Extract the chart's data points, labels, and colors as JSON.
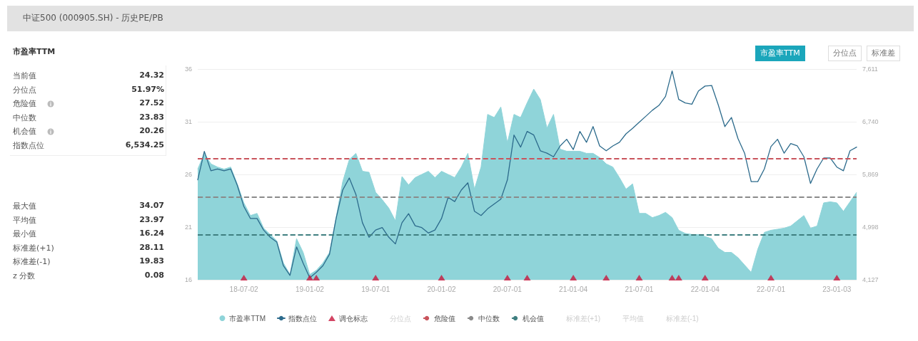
{
  "chart_data": [
    {
      "type": "other",
      "title": "市盈率TTM",
      "annotations": [
        "当前值",
        "24.32",
        "分位点",
        "51.97%",
        "危险值",
        "27.52",
        "中位数",
        "23.83",
        "机会值",
        "20.26",
        "指数点位",
        "6,534.25",
        "最大值",
        "34.07",
        "平均值",
        "23.97",
        "最小值",
        "16.24",
        "标准差(+1)",
        "28.11",
        "标准差(-1)",
        "19.83",
        "z 分数",
        "0.08"
      ]
    },
    {
      "type": "line",
      "title": "中证500 (000905.SH) - 历史PE/PB",
      "categories": [
        null,
        null,
        null,
        null,
        null,
        null,
        null,
        "18-07-02",
        null,
        null,
        null,
        null,
        null,
        null,
        null,
        null,
        null,
        "19-01-02",
        null,
        null,
        null,
        null,
        null,
        null,
        null,
        null,
        null,
        "19-07-01",
        null,
        null,
        null,
        null,
        null,
        null,
        null,
        null,
        null,
        "20-01-02",
        null,
        null,
        null,
        null,
        null,
        null,
        null,
        null,
        null,
        "20-07-01",
        null,
        null,
        null,
        null,
        null,
        null,
        null,
        null,
        null,
        "21-01-04",
        null,
        null,
        null,
        null,
        null,
        null,
        null,
        null,
        null,
        "21-07-01",
        null,
        null,
        null,
        null,
        null,
        null,
        null,
        null,
        null,
        "22-01-04",
        null,
        null,
        null,
        null,
        null,
        null,
        null,
        null,
        null,
        "22-07-01",
        null,
        null,
        null,
        null,
        null,
        null,
        null,
        null,
        null,
        "23-01-03",
        null,
        null,
        null
      ],
      "series": [
        {
          "name": "市盈率TTM",
          "type": "area",
          "color": "#8fd4d9",
          "values": [
            26.5,
            28.0,
            27.0,
            26.7,
            26.5,
            26.7,
            25.1,
            23.3,
            22.1,
            22.3,
            20.9,
            20.3,
            19.7,
            17.6,
            16.5,
            19.9,
            18.6,
            16.5,
            16.9,
            17.6,
            18.6,
            21.9,
            25.3,
            27.4,
            28.0,
            26.3,
            26.2,
            24.3,
            23.6,
            22.8,
            21.6,
            25.8,
            25.0,
            25.7,
            26.0,
            26.3,
            25.7,
            26.3,
            26.0,
            25.7,
            26.7,
            28.0,
            24.6,
            26.7,
            31.7,
            31.4,
            32.4,
            29.0,
            31.7,
            31.4,
            32.8,
            34.1,
            33.1,
            30.4,
            31.7,
            28.4,
            28.2,
            28.2,
            28.2,
            28.0,
            28.0,
            27.6,
            27.0,
            26.7,
            25.7,
            24.6,
            25.1,
            22.3,
            22.3,
            21.9,
            22.1,
            22.4,
            21.9,
            20.7,
            20.4,
            20.3,
            20.3,
            20.1,
            19.9,
            19.0,
            18.6,
            18.6,
            18.1,
            17.4,
            16.7,
            18.9,
            20.5,
            20.7,
            20.8,
            20.9,
            21.1,
            21.6,
            22.1,
            20.9,
            21.1,
            23.3,
            23.4,
            23.3,
            22.5,
            23.4,
            24.3
          ]
        },
        {
          "name": "指数点位",
          "type": "line",
          "axis": "y2",
          "color": "#2d6b8c",
          "values": [
            5780,
            6250,
            5930,
            5960,
            5930,
            5960,
            5690,
            5340,
            5140,
            5140,
            4950,
            4830,
            4750,
            4360,
            4200,
            4670,
            4400,
            4160,
            4250,
            4360,
            4550,
            5140,
            5610,
            5810,
            5540,
            5070,
            4830,
            4950,
            4990,
            4830,
            4720,
            5070,
            5220,
            5020,
            4990,
            4900,
            4950,
            5140,
            5490,
            5420,
            5610,
            5730,
            5260,
            5190,
            5300,
            5380,
            5460,
            5780,
            6520,
            6320,
            6580,
            6520,
            6260,
            6220,
            6160,
            6340,
            6450,
            6280,
            6580,
            6400,
            6660,
            6340,
            6260,
            6340,
            6400,
            6540,
            6630,
            6730,
            6830,
            6930,
            7010,
            7160,
            7580,
            7110,
            7050,
            7030,
            7250,
            7330,
            7340,
            7020,
            6660,
            6810,
            6460,
            6220,
            5750,
            5750,
            5960,
            6330,
            6450,
            6220,
            6380,
            6340,
            6160,
            5720,
            5960,
            6140,
            6140,
            5990,
            5930,
            6260,
            6320
          ]
        },
        {
          "name": "调仓标志",
          "type": "scatter",
          "marker": "triangle",
          "color": "#c8163c",
          "values": [
            null,
            null,
            null,
            null,
            null,
            null,
            null,
            16.2,
            null,
            null,
            null,
            null,
            null,
            null,
            null,
            null,
            null,
            16.2,
            16.2,
            null,
            null,
            null,
            null,
            null,
            null,
            null,
            null,
            16.2,
            null,
            null,
            null,
            null,
            null,
            null,
            null,
            null,
            null,
            16.2,
            null,
            null,
            null,
            null,
            null,
            null,
            null,
            null,
            null,
            16.2,
            null,
            null,
            16.2,
            null,
            null,
            null,
            null,
            null,
            null,
            16.2,
            null,
            null,
            null,
            null,
            16.2,
            null,
            null,
            null,
            null,
            16.2,
            null,
            null,
            null,
            null,
            16.2,
            16.2,
            null,
            null,
            null,
            16.2,
            null,
            null,
            null,
            null,
            null,
            null,
            null,
            null,
            null,
            16.2,
            null,
            null,
            null,
            null,
            null,
            null,
            null,
            null,
            null,
            16.2,
            null,
            null,
            null
          ]
        }
      ],
      "ylim": [
        16,
        36
      ],
      "yticks": [
        16,
        21,
        26,
        31,
        36
      ],
      "y2lim": [
        4127,
        7611
      ],
      "y2ticks": [
        {
          "value": 4127,
          "label": "4,127"
        },
        {
          "value": 4998,
          "label": "4,998"
        },
        {
          "value": 5869,
          "label": "5,869"
        },
        {
          "value": 6740,
          "label": "6,740"
        },
        {
          "value": 7611,
          "label": "7,611"
        }
      ],
      "ref_lines": [
        {
          "axis": "y",
          "value": 27.52,
          "label": "危险值",
          "color": "#c9545c",
          "line_style": "dashed"
        },
        {
          "axis": "y",
          "value": 23.83,
          "label": "中位数",
          "color": "#8a8a8a",
          "line_style": "dashed"
        },
        {
          "axis": "y",
          "value": 20.26,
          "label": "机会值",
          "color": "#3f7f80",
          "line_style": "dashed"
        }
      ],
      "annotations": [
        "市盈率TTM",
        "分位点",
        "标准差",
        "分位点",
        "标准差(+1)",
        "平均值",
        "标准差(-1)"
      ],
      "grid": "y",
      "legend": "bottom"
    }
  ]
}
